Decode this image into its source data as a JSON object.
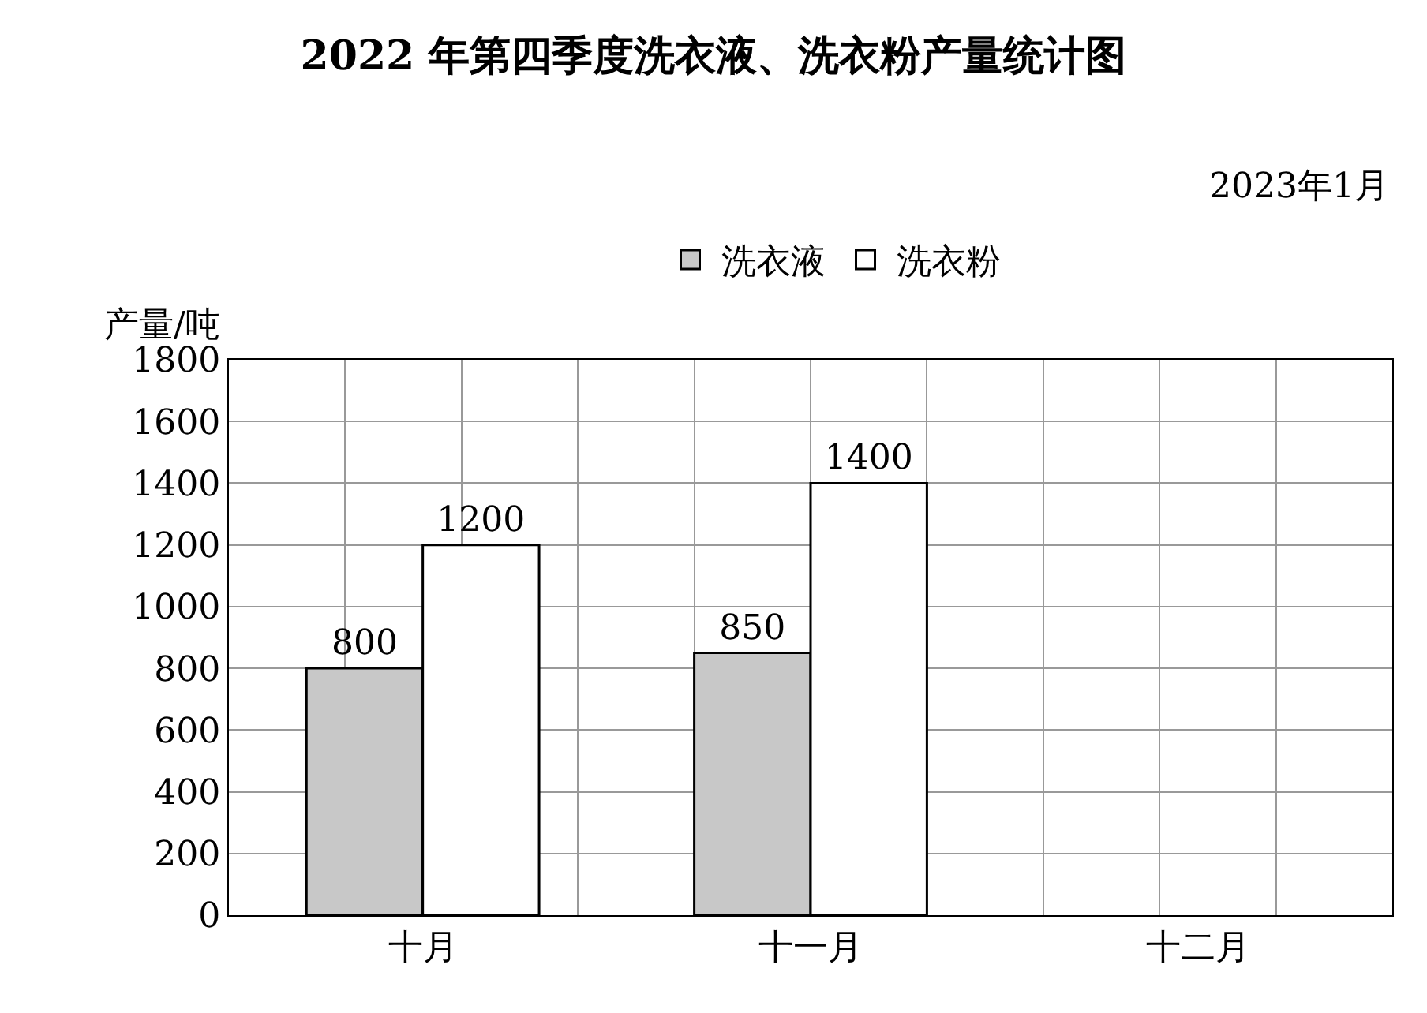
{
  "chart_data": {
    "type": "bar",
    "title": "2022 年第四季度洗衣液、洗衣粉产量统计图",
    "subtitle": "2023年1月",
    "ylabel": "产量/吨",
    "categories": [
      "十月",
      "十一月",
      "十二月"
    ],
    "series": [
      {
        "name": "洗衣液",
        "color": "#c8c8c8",
        "values": [
          800,
          850,
          null
        ]
      },
      {
        "name": "洗衣粉",
        "color": "#ffffff",
        "values": [
          1200,
          1400,
          null
        ]
      }
    ],
    "ylim": [
      0,
      1800
    ],
    "yticks": [
      0,
      200,
      400,
      600,
      800,
      1000,
      1200,
      1400,
      1600,
      1800
    ],
    "grid": true,
    "legend": "top",
    "data_labels": true
  }
}
